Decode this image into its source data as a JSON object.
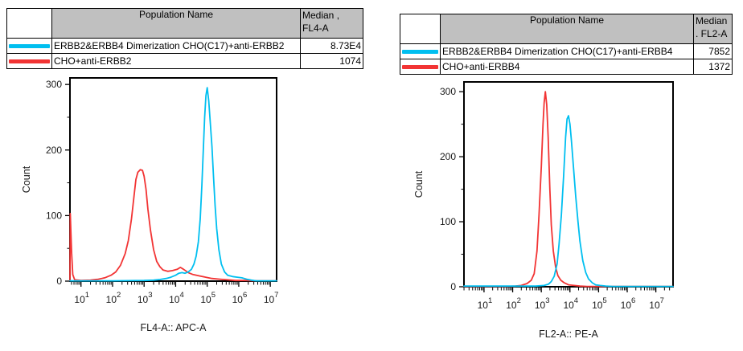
{
  "colors": {
    "cyan": "#00BFF0",
    "red": "#F23434",
    "header_bg": "#C0C0C0"
  },
  "panels": [
    {
      "table": {
        "population_header": "Population Name",
        "median_header_line1": "Median ,",
        "median_header_line2": "FL4-A",
        "rows": [
          {
            "swatch_color": "#00BFF0",
            "name": "ERBB2&ERBB4 Dimerization CHO(C17)+anti-ERBB2",
            "median": "8.73E4"
          },
          {
            "swatch_color": "#F23434",
            "name": "CHO+anti-ERBB2",
            "median": "1074"
          }
        ]
      }
    },
    {
      "table": {
        "population_header": "Population Name",
        "median_header_line1": "Median",
        "median_header_line2": ". FL2-A",
        "rows": [
          {
            "swatch_color": "#00BFF0",
            "name": "ERBB2&ERBB4 Dimerization CHO(C17)+anti-ERBB4",
            "median": "7852"
          },
          {
            "swatch_color": "#F23434",
            "name": "CHO+anti-ERBB4",
            "median": "1372"
          }
        ]
      }
    }
  ],
  "chart_data": [
    {
      "type": "line",
      "title": "",
      "xlabel": "FL4-A:: APC-A",
      "ylabel": "Count",
      "x_scale": "log10",
      "x_log_range": [
        0.65,
        7.2
      ],
      "x_major_tick_exponents": [
        1,
        2,
        3,
        4,
        5,
        6,
        7
      ],
      "ylim": [
        0,
        310
      ],
      "y_major_ticks": [
        0,
        100,
        200,
        300
      ],
      "y_minor_step": 50,
      "grid": false,
      "legend_position": "none",
      "series": [
        {
          "name": "CHO+anti-ERBB2",
          "color": "#F23434",
          "median": "1074",
          "peak": {
            "logx": 2.9,
            "count": 170
          },
          "points_logx_count": [
            [
              0.65,
              0.5
            ],
            [
              0.66,
              103
            ],
            [
              0.7,
              45
            ],
            [
              0.74,
              10
            ],
            [
              0.8,
              2
            ],
            [
              1.0,
              1
            ],
            [
              1.3,
              1.5
            ],
            [
              1.55,
              3
            ],
            [
              1.75,
              5
            ],
            [
              1.95,
              9
            ],
            [
              2.1,
              14
            ],
            [
              2.25,
              24
            ],
            [
              2.4,
              42
            ],
            [
              2.5,
              62
            ],
            [
              2.6,
              95
            ],
            [
              2.68,
              130
            ],
            [
              2.74,
              155
            ],
            [
              2.8,
              166
            ],
            [
              2.88,
              170
            ],
            [
              2.95,
              169
            ],
            [
              3.0,
              160
            ],
            [
              3.06,
              140
            ],
            [
              3.12,
              110
            ],
            [
              3.2,
              78
            ],
            [
              3.3,
              48
            ],
            [
              3.4,
              30
            ],
            [
              3.5,
              22
            ],
            [
              3.6,
              17
            ],
            [
              3.75,
              15
            ],
            [
              3.9,
              16
            ],
            [
              4.05,
              18
            ],
            [
              4.15,
              21
            ],
            [
              4.25,
              18
            ],
            [
              4.4,
              13
            ],
            [
              4.55,
              10
            ],
            [
              4.75,
              8
            ],
            [
              4.95,
              6
            ],
            [
              5.15,
              4
            ],
            [
              5.4,
              3
            ],
            [
              5.65,
              2
            ],
            [
              5.9,
              1
            ],
            [
              6.2,
              1
            ],
            [
              6.6,
              0.5
            ],
            [
              7.2,
              0.5
            ]
          ]
        },
        {
          "name": "ERBB2&ERBB4 Dimerization CHO(C17)+anti-ERBB2",
          "color": "#00BFF0",
          "median": "8.73E4",
          "peak": {
            "logx": 5.0,
            "count": 295
          },
          "points_logx_count": [
            [
              0.65,
              0.5
            ],
            [
              2.0,
              0.5
            ],
            [
              3.0,
              1
            ],
            [
              3.3,
              1.5
            ],
            [
              3.5,
              2.5
            ],
            [
              3.7,
              4
            ],
            [
              3.85,
              6
            ],
            [
              4.0,
              9
            ],
            [
              4.1,
              12
            ],
            [
              4.2,
              13
            ],
            [
              4.3,
              12
            ],
            [
              4.4,
              14
            ],
            [
              4.5,
              18
            ],
            [
              4.58,
              26
            ],
            [
              4.65,
              38
            ],
            [
              4.72,
              60
            ],
            [
              4.78,
              95
            ],
            [
              4.83,
              145
            ],
            [
              4.88,
              205
            ],
            [
              4.92,
              250
            ],
            [
              4.96,
              283
            ],
            [
              5.0,
              295
            ],
            [
              5.05,
              275
            ],
            [
              5.1,
              240
            ],
            [
              5.15,
              205
            ],
            [
              5.2,
              160
            ],
            [
              5.25,
              115
            ],
            [
              5.3,
              80
            ],
            [
              5.37,
              48
            ],
            [
              5.45,
              26
            ],
            [
              5.55,
              14
            ],
            [
              5.65,
              9
            ],
            [
              5.8,
              7
            ],
            [
              5.95,
              6
            ],
            [
              6.1,
              5
            ],
            [
              6.25,
              3
            ],
            [
              6.4,
              1.5
            ],
            [
              6.55,
              0.5
            ],
            [
              7.2,
              0.5
            ]
          ]
        }
      ]
    },
    {
      "type": "line",
      "title": "",
      "xlabel": "FL2-A:: PE-A",
      "ylabel": "Count",
      "x_scale": "log10",
      "x_log_range": [
        0.3,
        7.6
      ],
      "x_major_tick_exponents": [
        1,
        2,
        3,
        4,
        5,
        6,
        7
      ],
      "ylim": [
        0,
        315
      ],
      "y_major_ticks": [
        0,
        100,
        200,
        300
      ],
      "y_minor_step": 50,
      "grid": false,
      "legend_position": "none",
      "series": [
        {
          "name": "CHO+anti-ERBB4",
          "color": "#F23434",
          "median": "1372",
          "peak": {
            "logx": 3.14,
            "count": 300
          },
          "points_logx_count": [
            [
              0.3,
              0.5
            ],
            [
              1.8,
              0.5
            ],
            [
              2.1,
              1
            ],
            [
              2.3,
              2
            ],
            [
              2.5,
              5
            ],
            [
              2.65,
              10
            ],
            [
              2.75,
              20
            ],
            [
              2.85,
              55
            ],
            [
              2.92,
              110
            ],
            [
              3.0,
              185
            ],
            [
              3.06,
              250
            ],
            [
              3.1,
              283
            ],
            [
              3.14,
              300
            ],
            [
              3.19,
              280
            ],
            [
              3.24,
              230
            ],
            [
              3.3,
              150
            ],
            [
              3.35,
              95
            ],
            [
              3.42,
              55
            ],
            [
              3.5,
              30
            ],
            [
              3.58,
              17
            ],
            [
              3.68,
              10
            ],
            [
              3.8,
              6
            ],
            [
              3.95,
              3
            ],
            [
              4.15,
              2
            ],
            [
              4.35,
              1
            ],
            [
              4.6,
              0.5
            ],
            [
              7.6,
              0.5
            ]
          ]
        },
        {
          "name": "ERBB2&ERBB4 Dimerization CHO(C17)+anti-ERBB4",
          "color": "#00BFF0",
          "median": "7852",
          "peak": {
            "logx": 3.95,
            "count": 263
          },
          "points_logx_count": [
            [
              0.3,
              1
            ],
            [
              2.8,
              1
            ],
            [
              3.1,
              2
            ],
            [
              3.25,
              4
            ],
            [
              3.35,
              8
            ],
            [
              3.45,
              16
            ],
            [
              3.55,
              35
            ],
            [
              3.62,
              65
            ],
            [
              3.7,
              110
            ],
            [
              3.78,
              170
            ],
            [
              3.85,
              230
            ],
            [
              3.9,
              258
            ],
            [
              3.95,
              263
            ],
            [
              4.0,
              250
            ],
            [
              4.05,
              225
            ],
            [
              4.12,
              185
            ],
            [
              4.2,
              140
            ],
            [
              4.28,
              100
            ],
            [
              4.35,
              70
            ],
            [
              4.45,
              40
            ],
            [
              4.55,
              22
            ],
            [
              4.65,
              12
            ],
            [
              4.78,
              6
            ],
            [
              4.9,
              3
            ],
            [
              5.05,
              2
            ],
            [
              5.25,
              1
            ],
            [
              5.5,
              0.5
            ],
            [
              7.6,
              0.5
            ]
          ]
        }
      ]
    }
  ]
}
